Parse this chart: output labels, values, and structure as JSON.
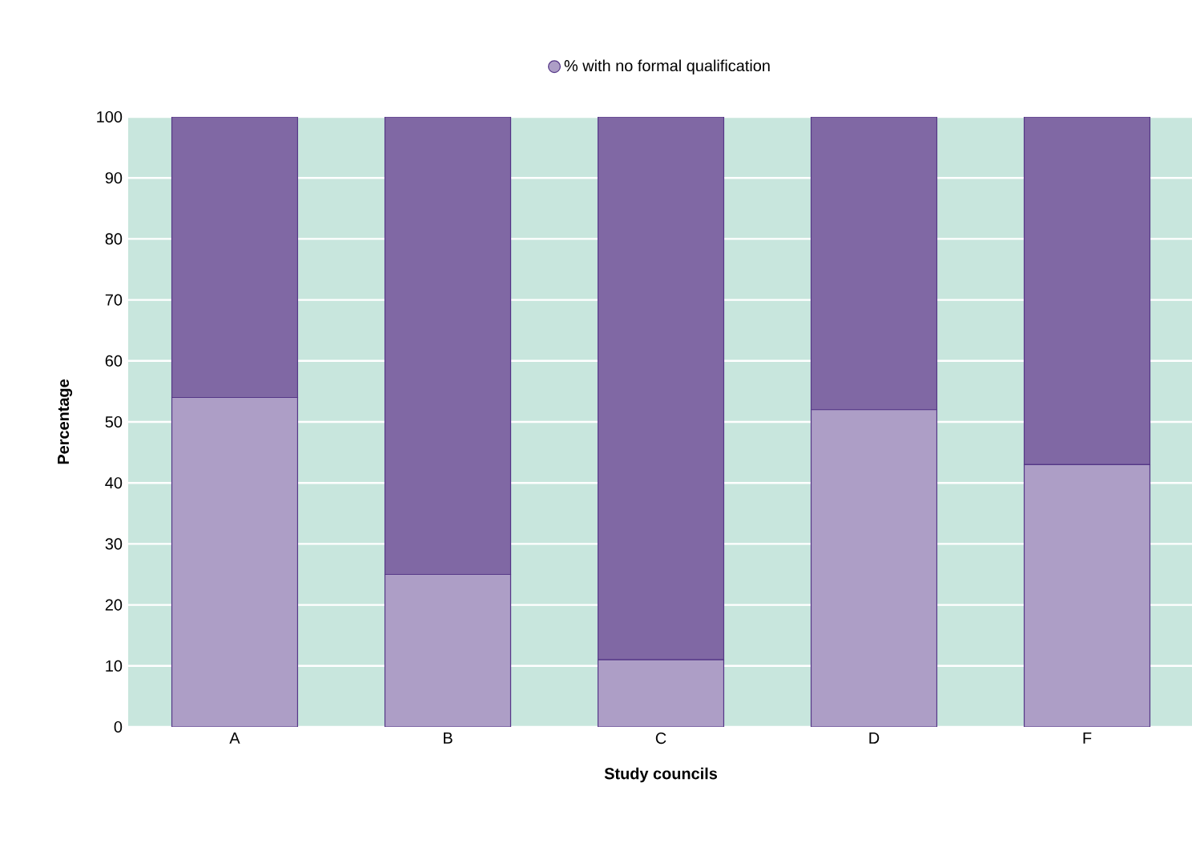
{
  "chart_data": {
    "type": "bar",
    "stacked": true,
    "xlabel": "Study councils",
    "ylabel": "Percentage",
    "categories": [
      "A",
      "B",
      "C",
      "D",
      "F"
    ],
    "series": [
      {
        "name": "% with no formal qualification",
        "color": "#ad9ec6",
        "values": [
          54,
          25,
          11,
          52,
          43
        ]
      },
      {
        "color": "#8068a4",
        "values": [
          46,
          75,
          89,
          48,
          57
        ]
      }
    ],
    "ylim": [
      0,
      100
    ],
    "yticks": [
      0,
      10,
      20,
      30,
      40,
      50,
      60,
      70,
      80,
      90,
      100
    ],
    "grid": "y",
    "legend": "top"
  }
}
